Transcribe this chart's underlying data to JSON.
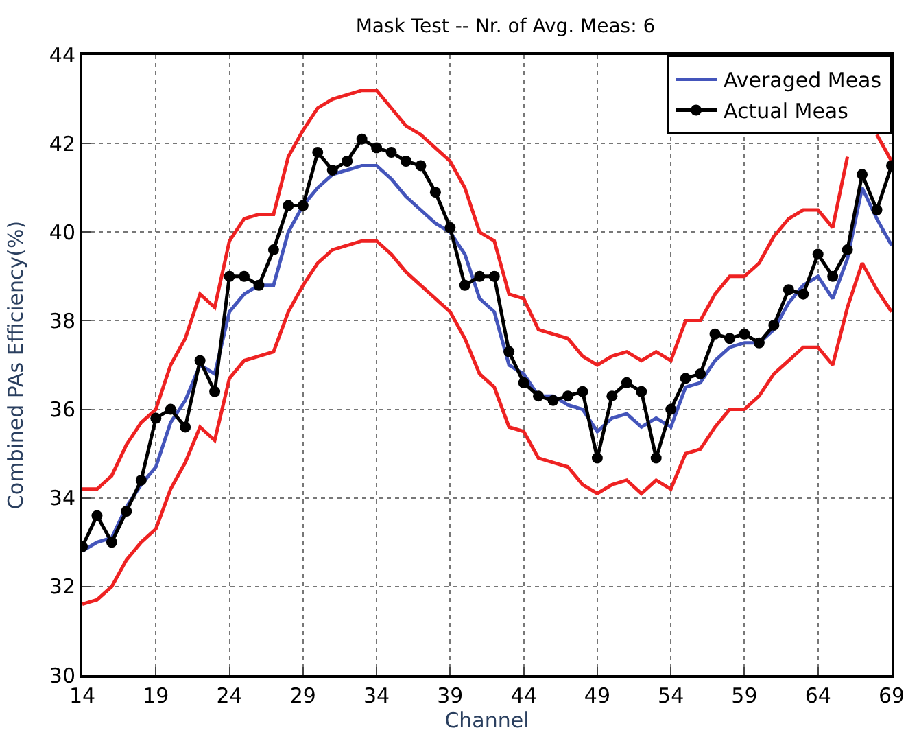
{
  "chart_data": {
    "type": "line",
    "title": "Mask Test -- Nr. of Avg. Meas: 6",
    "xlabel": "Channel",
    "ylabel": "Combined PAs Efficiency(%)",
    "x": [
      14,
      15,
      16,
      17,
      18,
      19,
      20,
      21,
      22,
      23,
      24,
      25,
      26,
      27,
      28,
      29,
      30,
      31,
      32,
      33,
      34,
      35,
      36,
      37,
      38,
      39,
      40,
      41,
      42,
      43,
      44,
      45,
      46,
      47,
      48,
      49,
      50,
      51,
      52,
      53,
      54,
      55,
      56,
      57,
      58,
      59,
      60,
      61,
      62,
      63,
      64,
      65,
      66,
      67,
      68,
      69
    ],
    "series": [
      {
        "color": "#ee2222",
        "marker": "none",
        "values": [
          34.2,
          34.2,
          34.5,
          35.2,
          35.7,
          36.0,
          37.0,
          37.6,
          38.6,
          38.3,
          39.8,
          40.3,
          40.4,
          40.4,
          41.7,
          42.3,
          42.8,
          43.0,
          43.1,
          43.2,
          43.2,
          42.8,
          42.4,
          42.2,
          41.9,
          41.6,
          41.0,
          40.0,
          39.8,
          38.6,
          38.5,
          37.8,
          37.7,
          37.6,
          37.2,
          37.0,
          37.2,
          37.3,
          37.1,
          37.3,
          37.1,
          38.0,
          38.0,
          38.6,
          39.0,
          39.0,
          39.3,
          39.9,
          40.3,
          40.5,
          40.5,
          40.1,
          41.7,
          null,
          42.2,
          41.6
        ]
      },
      {
        "color": "#ee2222",
        "marker": "none",
        "values": [
          31.6,
          31.7,
          32.0,
          32.6,
          33.0,
          33.3,
          34.2,
          34.8,
          35.6,
          35.3,
          36.7,
          37.1,
          37.2,
          37.3,
          38.2,
          38.8,
          39.3,
          39.6,
          39.7,
          39.8,
          39.8,
          39.5,
          39.1,
          38.8,
          38.5,
          38.2,
          37.6,
          36.8,
          36.5,
          35.6,
          35.5,
          34.9,
          34.8,
          34.7,
          34.3,
          34.1,
          34.3,
          34.4,
          34.1,
          34.4,
          34.2,
          35.0,
          35.1,
          35.6,
          36.0,
          36.0,
          36.3,
          36.8,
          37.1,
          37.4,
          37.4,
          37.0,
          38.3,
          39.3,
          38.7,
          38.2
        ]
      },
      {
        "name": "Averaged Meas",
        "color": "#4455bb",
        "marker": "none",
        "values": [
          32.8,
          33.0,
          33.1,
          33.8,
          34.3,
          34.7,
          35.7,
          36.2,
          37.0,
          36.8,
          38.2,
          38.6,
          38.8,
          38.8,
          40.0,
          40.6,
          41.0,
          41.3,
          41.4,
          41.5,
          41.5,
          41.2,
          40.8,
          40.5,
          40.2,
          40.0,
          39.5,
          38.5,
          38.2,
          37.0,
          36.8,
          36.3,
          36.3,
          36.1,
          36.0,
          35.5,
          35.8,
          35.9,
          35.6,
          35.8,
          35.6,
          36.5,
          36.6,
          37.1,
          37.4,
          37.5,
          37.5,
          37.8,
          38.4,
          38.8,
          39.0,
          38.5,
          39.4,
          41.0,
          40.3,
          39.7
        ]
      },
      {
        "name": "Actual Meas",
        "color": "#000000",
        "marker": "circle",
        "values": [
          32.9,
          33.6,
          33.0,
          33.7,
          34.4,
          35.8,
          36.0,
          35.6,
          37.1,
          36.4,
          39.0,
          39.0,
          38.8,
          39.6,
          40.6,
          40.6,
          41.8,
          41.4,
          41.6,
          42.1,
          41.9,
          41.8,
          41.6,
          41.5,
          40.9,
          40.1,
          38.8,
          39.0,
          39.0,
          37.3,
          36.6,
          36.3,
          36.2,
          36.3,
          36.4,
          34.9,
          36.3,
          36.6,
          36.4,
          34.9,
          36.0,
          36.7,
          36.8,
          37.7,
          37.6,
          37.7,
          37.5,
          37.9,
          38.7,
          38.6,
          39.5,
          39.0,
          39.6,
          41.3,
          40.5,
          41.5
        ]
      }
    ],
    "xlim": [
      14,
      69
    ],
    "xticks": [
      14,
      19,
      24,
      29,
      34,
      39,
      44,
      49,
      54,
      59,
      64,
      69
    ],
    "ylim": [
      30,
      44
    ],
    "yticks": [
      30,
      32,
      34,
      36,
      38,
      40,
      42,
      44
    ],
    "grid": true,
    "legend": "top right"
  }
}
